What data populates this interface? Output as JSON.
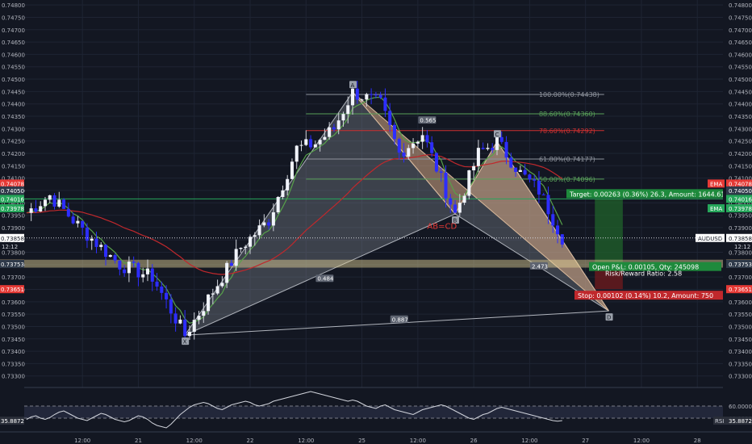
{
  "chart_data": {
    "type": "candlestick",
    "symbol": "AUDUSD",
    "ylim": [
      0.7326,
      0.7482
    ],
    "y_ticks": [
      "0.74800",
      "0.74750",
      "0.74700",
      "0.74650",
      "0.74600",
      "0.74550",
      "0.74500",
      "0.74450",
      "0.74400",
      "0.74350",
      "0.74300",
      "0.74250",
      "0.74200",
      "0.74150",
      "0.74100",
      "0.74050",
      "0.74000",
      "0.73950",
      "0.73900",
      "0.73850",
      "0.73800",
      "0.73750",
      "0.73700",
      "0.73650",
      "0.73600",
      "0.73550",
      "0.73500",
      "0.73450",
      "0.73400",
      "0.73350",
      "0.73300"
    ],
    "x_ticks": [
      {
        "label": "12:00",
        "i": 12
      },
      {
        "label": "21",
        "i": 24
      },
      {
        "label": "12:00",
        "i": 36
      },
      {
        "label": "22",
        "i": 48
      },
      {
        "label": "12:00",
        "i": 60
      },
      {
        "label": "25",
        "i": 72
      },
      {
        "label": "12:00",
        "i": 84
      },
      {
        "label": "26",
        "i": 96
      },
      {
        "label": "12:00",
        "i": 108
      },
      {
        "label": "27",
        "i": 120
      },
      {
        "label": "12:00",
        "i": 132
      },
      {
        "label": "28",
        "i": 144
      }
    ],
    "bar_count": 150,
    "colors": {
      "up": "#f0f3fa",
      "down": "#2d2dff",
      "ema_fast": "#57a14a",
      "ema_slow": "#c0282c",
      "target_zone": "#1f5e2a",
      "stop_zone": "#6b1a1e",
      "pattern_fill": "#d7a987",
      "leg_fill": "#8a8f99"
    },
    "price_labels": [
      {
        "value": 0.74078,
        "text": "0.74078",
        "color": "#e53935",
        "tag": "EMA"
      },
      {
        "value": 0.7405,
        "text": "0.74050",
        "color": "#2f3a4a"
      },
      {
        "value": 0.74016,
        "text": "0.74016",
        "color": "#26a65b"
      },
      {
        "value": 0.73978,
        "text": "0.73978",
        "color": "#26a65b",
        "tag": "EMA"
      },
      {
        "value": 0.73858,
        "text": "0.73858",
        "color": "#ffffff",
        "tag": "AUDUSD"
      },
      {
        "value": 0.73754,
        "text": "0.73754",
        "color": "#d4b27a"
      },
      {
        "value": 0.73753,
        "text": "0.73753",
        "color": "#2f3a4a"
      },
      {
        "value": 0.73651,
        "text": "0.73651",
        "color": "#e53935"
      }
    ],
    "countdown": "12:12",
    "pattern": {
      "points": [
        {
          "label": "X",
          "i": 34,
          "y": 0.73465
        },
        {
          "label": "A",
          "i": 70,
          "y": 0.74447
        },
        {
          "label": "B",
          "i": 92,
          "y": 0.73955
        },
        {
          "label": "C",
          "i": 101,
          "y": 0.74248
        },
        {
          "label": "D",
          "i": 125,
          "y": 0.73563
        }
      ],
      "ratios": [
        {
          "text": "0.484",
          "i": 64,
          "y": 0.7369
        },
        {
          "text": "0.565",
          "i": 86,
          "y": 0.7433
        },
        {
          "text": "2.473",
          "i": 110,
          "y": 0.7374
        },
        {
          "text": "0.887",
          "i": 80,
          "y": 0.73525
        }
      ],
      "ab_cd_label": "AB=CD"
    },
    "fib_levels": [
      {
        "text": "100.00%(0.74438)",
        "value": 0.74438
      },
      {
        "text": "88.60%(0.74360)",
        "value": 0.7436
      },
      {
        "text": "78.60%(0.74292)",
        "value": 0.74292
      },
      {
        "text": "61.80%(0.74177)",
        "value": 0.74177
      },
      {
        "text": "50.00%(0.74096)",
        "value": 0.74096
      }
    ],
    "position": {
      "entry": 0.73754,
      "target": 0.74016,
      "stop": 0.73651,
      "target_label": "Target: 0.00263 (0.36%) 26.3, Amount: 1644.61",
      "pnl_label": "Open P&L: 0.00105, Qty: 245098",
      "rr_label": "Risk/Reward Ratio: 2.58",
      "stop_label": "Stop: 0.00102 (0.14%) 10.2, Amount: 750"
    },
    "rsi": {
      "current": "35.8872",
      "ticks": [
        "60.0000",
        "40.0000"
      ],
      "values": [
        38,
        42,
        44,
        40,
        38,
        41,
        46,
        50,
        52,
        48,
        44,
        40,
        38,
        36,
        40,
        44,
        48,
        46,
        42,
        38,
        36,
        34,
        36,
        40,
        44,
        42,
        38,
        32,
        28,
        26,
        24,
        30,
        38,
        46,
        52,
        58,
        62,
        64,
        66,
        64,
        60,
        56,
        54,
        58,
        62,
        64,
        66,
        68,
        66,
        62,
        60,
        62,
        64,
        68,
        70,
        72,
        74,
        76,
        78,
        80,
        82,
        84,
        82,
        80,
        78,
        76,
        74,
        72,
        70,
        68,
        70,
        68,
        64,
        60,
        58,
        56,
        60,
        62,
        58,
        54,
        52,
        50,
        48,
        46,
        50,
        54,
        56,
        58,
        60,
        62,
        60,
        56,
        52,
        48,
        44,
        40,
        38,
        42,
        46,
        48,
        52,
        56,
        58,
        56,
        54,
        52,
        50,
        48,
        46,
        44,
        42,
        40,
        38,
        36,
        35,
        36
      ]
    }
  }
}
